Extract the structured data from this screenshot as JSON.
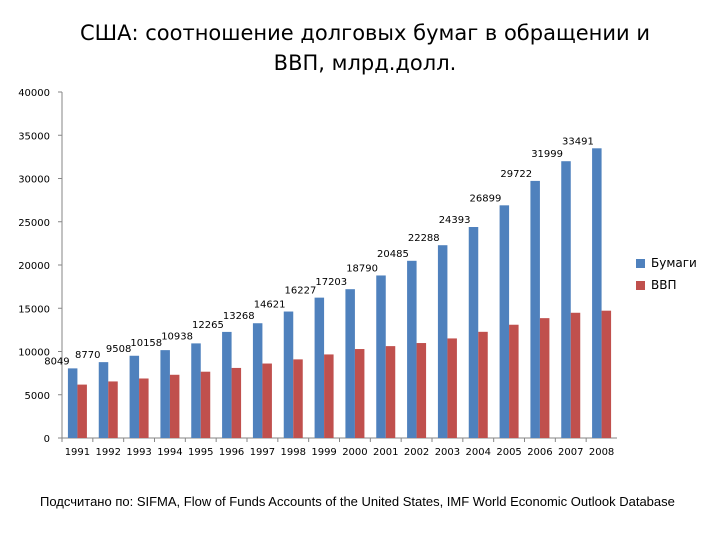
{
  "chart_data": {
    "type": "bar",
    "title_line1": "США: соотношение долговых бумаг в обращении и",
    "title_line2": "ВВП, млрд.долл.",
    "categories": [
      "1991",
      "1992",
      "1993",
      "1994",
      "1995",
      "1996",
      "1997",
      "1998",
      "1999",
      "2000",
      "2001",
      "2002",
      "2003",
      "2004",
      "2005",
      "2006",
      "2007",
      "2008"
    ],
    "series": [
      {
        "name": "Бумаги",
        "color": "#4F81BD",
        "values": [
          8049,
          8770,
          9508,
          10158,
          10938,
          12265,
          13268,
          14621,
          16227,
          17203,
          18790,
          20485,
          22288,
          24393,
          26899,
          29722,
          31999,
          33491
        ],
        "labels": [
          "8049",
          "8770",
          "9508",
          "10158",
          "10938",
          "12265",
          "13268",
          "14621",
          "16227",
          "17203",
          "18790",
          "20485",
          "22288",
          "24393",
          "26899",
          "29722",
          "31999",
          "33491"
        ]
      },
      {
        "name": "ВВП",
        "color": "#C0504D",
        "values": [
          6174,
          6539,
          6879,
          7309,
          7664,
          8100,
          8609,
          9089,
          9661,
          10285,
          10622,
          10978,
          11511,
          12275,
          13094,
          13856,
          14478,
          14719
        ]
      }
    ],
    "y_ticks": [
      "0",
      "5000",
      "10000",
      "15000",
      "20000",
      "25000",
      "30000",
      "35000",
      "40000"
    ],
    "ylim": [
      0,
      40000
    ],
    "legend_position": "right"
  },
  "source": "Подсчитано по: SIFMA, Flow of Funds Accounts of the United States, IMF World Economic Outlook Database"
}
